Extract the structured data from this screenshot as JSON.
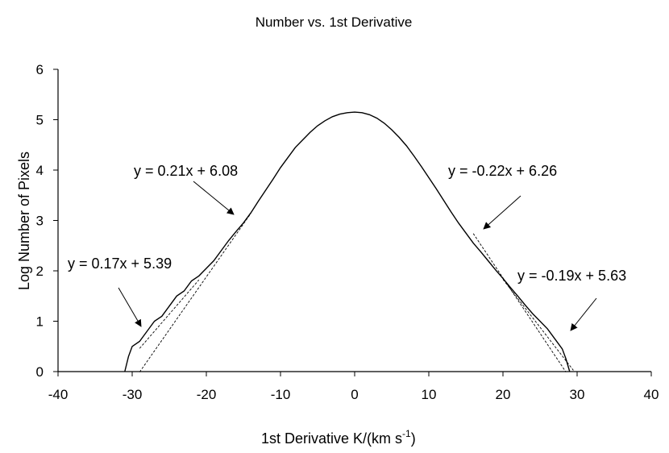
{
  "chart_data": {
    "type": "line",
    "title": "Number vs. 1st Derivative",
    "xlabel": "1st Derivative K/(km s",
    "xlabel_sup": "-1",
    "xlabel_end": ")",
    "ylabel": "Log Number of Pixels",
    "xlim": [
      -40,
      40
    ],
    "ylim": [
      0,
      6
    ],
    "xticks": [
      -40,
      -30,
      -20,
      -10,
      0,
      10,
      20,
      30,
      40
    ],
    "yticks": [
      0,
      1,
      2,
      3,
      4,
      5,
      6
    ],
    "grid": false,
    "series": [
      {
        "values": [
          {
            "x": -31.0,
            "y": 0.0
          },
          {
            "x": -30.5,
            "y": 0.3
          },
          {
            "x": -30.0,
            "y": 0.5
          },
          {
            "x": -29.0,
            "y": 0.6
          },
          {
            "x": -28.0,
            "y": 0.8
          },
          {
            "x": -27.0,
            "y": 1.0
          },
          {
            "x": -26.0,
            "y": 1.1
          },
          {
            "x": -25.0,
            "y": 1.3
          },
          {
            "x": -24.0,
            "y": 1.5
          },
          {
            "x": -23.0,
            "y": 1.6
          },
          {
            "x": -22.0,
            "y": 1.8
          },
          {
            "x": -21.0,
            "y": 1.9
          },
          {
            "x": -20.0,
            "y": 2.05
          },
          {
            "x": -19.0,
            "y": 2.2
          },
          {
            "x": -18.0,
            "y": 2.4
          },
          {
            "x": -17.0,
            "y": 2.6
          },
          {
            "x": -16.0,
            "y": 2.78
          },
          {
            "x": -15.0,
            "y": 2.95
          },
          {
            "x": -14.0,
            "y": 3.15
          },
          {
            "x": -13.0,
            "y": 3.38
          },
          {
            "x": -12.0,
            "y": 3.6
          },
          {
            "x": -11.0,
            "y": 3.82
          },
          {
            "x": -10.0,
            "y": 4.05
          },
          {
            "x": -9.0,
            "y": 4.25
          },
          {
            "x": -8.0,
            "y": 4.45
          },
          {
            "x": -7.0,
            "y": 4.6
          },
          {
            "x": -6.0,
            "y": 4.75
          },
          {
            "x": -5.0,
            "y": 4.88
          },
          {
            "x": -4.0,
            "y": 4.98
          },
          {
            "x": -3.0,
            "y": 5.06
          },
          {
            "x": -2.0,
            "y": 5.11
          },
          {
            "x": -1.0,
            "y": 5.14
          },
          {
            "x": 0.0,
            "y": 5.15
          },
          {
            "x": 1.0,
            "y": 5.14
          },
          {
            "x": 2.0,
            "y": 5.1
          },
          {
            "x": 3.0,
            "y": 5.03
          },
          {
            "x": 4.0,
            "y": 4.93
          },
          {
            "x": 5.0,
            "y": 4.8
          },
          {
            "x": 6.0,
            "y": 4.65
          },
          {
            "x": 7.0,
            "y": 4.48
          },
          {
            "x": 8.0,
            "y": 4.28
          },
          {
            "x": 9.0,
            "y": 4.07
          },
          {
            "x": 10.0,
            "y": 3.85
          },
          {
            "x": 11.0,
            "y": 3.63
          },
          {
            "x": 12.0,
            "y": 3.4
          },
          {
            "x": 13.0,
            "y": 3.17
          },
          {
            "x": 14.0,
            "y": 2.95
          },
          {
            "x": 15.0,
            "y": 2.75
          },
          {
            "x": 16.0,
            "y": 2.55
          },
          {
            "x": 17.0,
            "y": 2.38
          },
          {
            "x": 18.0,
            "y": 2.2
          },
          {
            "x": 19.0,
            "y": 2.02
          },
          {
            "x": 20.0,
            "y": 1.85
          },
          {
            "x": 21.0,
            "y": 1.67
          },
          {
            "x": 22.0,
            "y": 1.5
          },
          {
            "x": 23.0,
            "y": 1.32
          },
          {
            "x": 24.0,
            "y": 1.15
          },
          {
            "x": 25.0,
            "y": 1.0
          },
          {
            "x": 26.0,
            "y": 0.85
          },
          {
            "x": 27.0,
            "y": 0.65
          },
          {
            "x": 28.0,
            "y": 0.45
          },
          {
            "x": 28.5,
            "y": 0.25
          },
          {
            "x": 29.0,
            "y": 0.0
          }
        ]
      }
    ],
    "fits": [
      {
        "label": "y = 0.17x + 5.39",
        "slope": 0.17,
        "intercept": 5.39,
        "x_range": [
          -29.0,
          -21.0
        ]
      },
      {
        "label": "y = 0.21x + 6.08",
        "slope": 0.21,
        "intercept": 6.08,
        "x_range": [
          -29.0,
          -14.0
        ]
      },
      {
        "label": "y = -0.22x + 6.26",
        "slope": -0.22,
        "intercept": 6.26,
        "x_range": [
          16.0,
          28.5
        ]
      },
      {
        "label": "y = -0.19x + 5.63",
        "slope": -0.19,
        "intercept": 5.63,
        "x_range": [
          20.0,
          29.5
        ]
      }
    ]
  }
}
